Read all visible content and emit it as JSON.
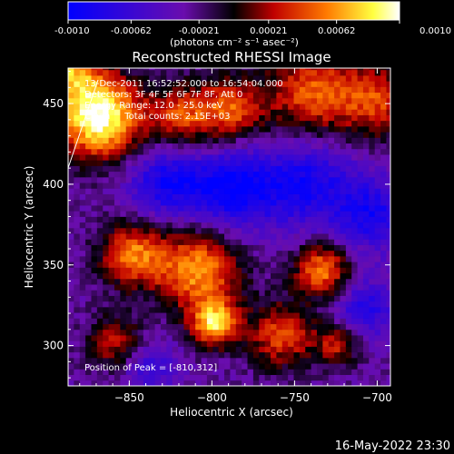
{
  "colorbar": {
    "tick_labels": [
      "-0.0010",
      "-0.00062",
      "-0.00021",
      "0.00021",
      "0.00062",
      "0.0010"
    ],
    "tick_values": [
      -0.001,
      -0.00062,
      -0.00021,
      0.00021,
      0.00062,
      0.001
    ],
    "range": [
      -0.001,
      0.001
    ],
    "units_label": "(photons cm⁻² s⁻¹ asec⁻²)"
  },
  "plot": {
    "title": "Reconstructed RHESSI Image",
    "xlabel": "Heliocentric X (arcsec)",
    "ylabel": "Heliocentric Y (arcsec)",
    "x_ticks": [
      -850,
      -800,
      -750,
      -700
    ],
    "x_tick_labels": [
      "−850",
      "−800",
      "−750",
      "−700"
    ],
    "y_ticks": [
      300,
      350,
      400,
      450
    ],
    "y_tick_labels": [
      "300",
      "350",
      "400",
      "450"
    ],
    "xlim": [
      -887,
      -692
    ],
    "ylim": [
      275,
      472
    ],
    "annotation_lines": [
      "13-Dec-2011 16:52:52.000 to 16:54:04.000",
      "Detectors: 3F 4F 5F 6F 7F 8F, Att 0",
      "Energy Range: 12.0 - 25.0 keV",
      "Clean     Total counts: 2.15E+03"
    ],
    "peak_label": "Position of Peak = [-810,312]",
    "peak_position": [
      -810,
      312
    ]
  },
  "footer": {
    "timestamp": "16-May-2022 23:30"
  },
  "chart_data": {
    "type": "heatmap",
    "title": "Reconstructed RHESSI Image",
    "xlabel": "Heliocentric X (arcsec)",
    "ylabel": "Heliocentric Y (arcsec)",
    "xlim": [
      -887,
      -692
    ],
    "ylim": [
      275,
      472
    ],
    "colorbar_range": [
      -0.001,
      0.001
    ],
    "colormap": [
      "#0000ff",
      "#6a0dad",
      "#000000",
      "#c00000",
      "#ff7a00",
      "#ffff40",
      "#ffffff"
    ],
    "peak": [
      -810,
      312
    ],
    "blobs": [
      {
        "x": -870,
        "y": 440,
        "s": 18,
        "a": 1.3
      },
      {
        "x": -890,
        "y": 470,
        "s": 14,
        "a": 0.8
      },
      {
        "x": -820,
        "y": 440,
        "s": 14,
        "a": 0.65
      },
      {
        "x": -790,
        "y": 445,
        "s": 14,
        "a": 0.7
      },
      {
        "x": -740,
        "y": 455,
        "s": 20,
        "a": 0.75
      },
      {
        "x": -700,
        "y": 450,
        "s": 16,
        "a": 0.6
      },
      {
        "x": -850,
        "y": 355,
        "s": 14,
        "a": 0.8
      },
      {
        "x": -810,
        "y": 345,
        "s": 18,
        "a": 0.9
      },
      {
        "x": -735,
        "y": 345,
        "s": 12,
        "a": 0.85
      },
      {
        "x": -800,
        "y": 312,
        "s": 10,
        "a": 1.0
      },
      {
        "x": -760,
        "y": 305,
        "s": 14,
        "a": 0.7
      },
      {
        "x": -725,
        "y": 300,
        "s": 10,
        "a": 0.6
      },
      {
        "x": -860,
        "y": 300,
        "s": 12,
        "a": 0.55
      },
      {
        "x": -830,
        "y": 400,
        "s": 16,
        "a": -0.6
      },
      {
        "x": -790,
        "y": 395,
        "s": 18,
        "a": -0.7
      },
      {
        "x": -745,
        "y": 400,
        "s": 20,
        "a": -0.6
      },
      {
        "x": -705,
        "y": 380,
        "s": 16,
        "a": -0.55
      },
      {
        "x": -710,
        "y": 320,
        "s": 14,
        "a": -0.5
      },
      {
        "x": -840,
        "y": 285,
        "s": 12,
        "a": -0.4
      }
    ]
  }
}
